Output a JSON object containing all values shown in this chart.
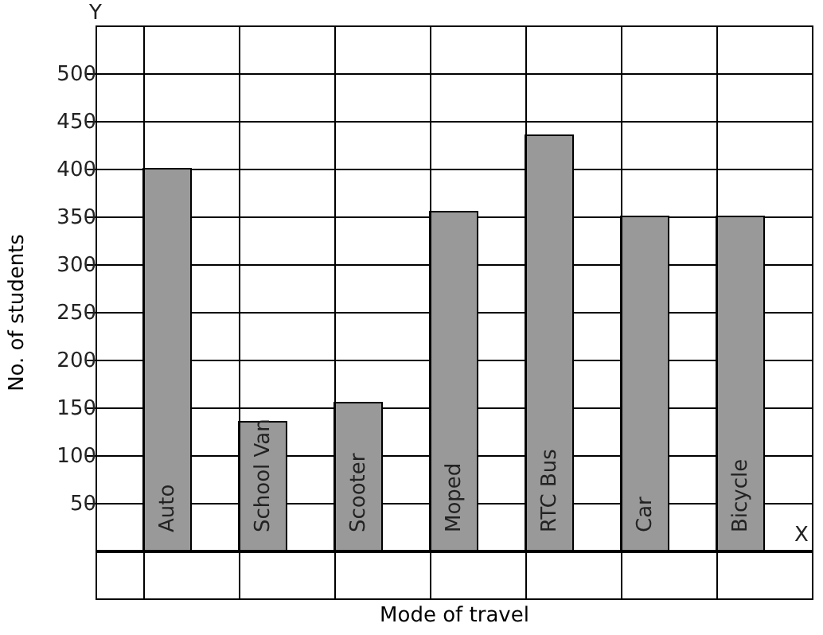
{
  "chart_data": {
    "type": "bar",
    "categories": [
      "Auto",
      "School Van",
      "Scooter",
      "Moped",
      "RTC Bus",
      "Car",
      "Bicycle"
    ],
    "values": [
      400,
      135,
      155,
      355,
      435,
      350,
      350
    ],
    "color": "#999999",
    "xlabel": "Mode of travel",
    "ylabel": "No. of students",
    "annotations": [
      "X",
      "Y"
    ],
    "ylim": [
      -50,
      550
    ],
    "yticks": [
      50,
      100,
      150,
      200,
      250,
      300,
      350,
      400,
      450,
      500
    ],
    "grid": true
  }
}
